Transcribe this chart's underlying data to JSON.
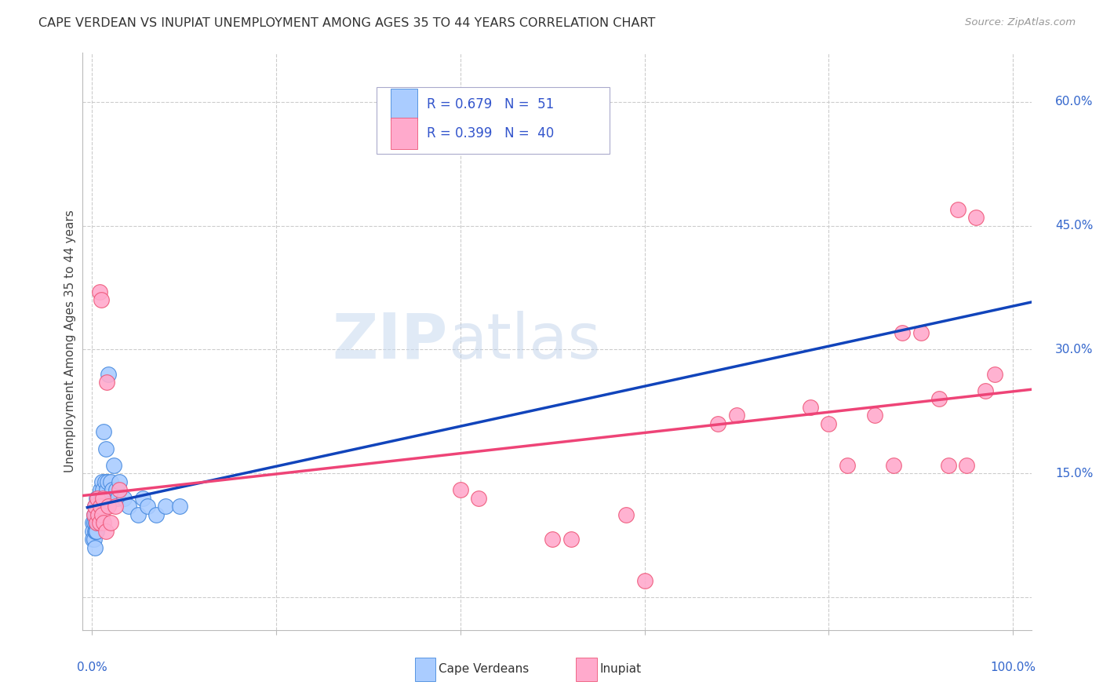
{
  "title": "CAPE VERDEAN VS INUPIAT UNEMPLOYMENT AMONG AGES 35 TO 44 YEARS CORRELATION CHART",
  "source": "Source: ZipAtlas.com",
  "ylabel": "Unemployment Among Ages 35 to 44 years",
  "ytick_vals": [
    0.0,
    0.15,
    0.3,
    0.45,
    0.6
  ],
  "ytick_labels": [
    "",
    "15.0%",
    "30.0%",
    "45.0%",
    "60.0%"
  ],
  "background_color": "#ffffff",
  "grid_color": "#cccccc",
  "cape_verdean_color": "#aaccff",
  "cape_verdean_edge": "#4488dd",
  "inupiat_color": "#ffaacc",
  "inupiat_edge": "#ee5577",
  "trendline1_color": "#1144bb",
  "trendline2_color": "#ee4477",
  "cv_x": [
    0.001,
    0.001,
    0.001,
    0.002,
    0.002,
    0.002,
    0.003,
    0.003,
    0.003,
    0.003,
    0.004,
    0.004,
    0.004,
    0.005,
    0.005,
    0.005,
    0.006,
    0.006,
    0.006,
    0.007,
    0.007,
    0.007,
    0.008,
    0.008,
    0.009,
    0.009,
    0.01,
    0.01,
    0.011,
    0.011,
    0.012,
    0.013,
    0.014,
    0.015,
    0.016,
    0.017,
    0.018,
    0.02,
    0.022,
    0.024,
    0.026,
    0.028,
    0.03,
    0.035,
    0.04,
    0.05,
    0.055,
    0.06,
    0.07,
    0.08,
    0.095
  ],
  "cv_y": [
    0.09,
    0.08,
    0.07,
    0.1,
    0.09,
    0.07,
    0.11,
    0.1,
    0.08,
    0.06,
    0.1,
    0.09,
    0.08,
    0.12,
    0.1,
    0.08,
    0.11,
    0.1,
    0.09,
    0.12,
    0.1,
    0.09,
    0.11,
    0.1,
    0.13,
    0.09,
    0.12,
    0.1,
    0.14,
    0.11,
    0.13,
    0.2,
    0.14,
    0.18,
    0.13,
    0.14,
    0.27,
    0.14,
    0.13,
    0.16,
    0.13,
    0.12,
    0.14,
    0.12,
    0.11,
    0.1,
    0.12,
    0.11,
    0.1,
    0.11,
    0.11
  ],
  "inp_x": [
    0.002,
    0.003,
    0.005,
    0.006,
    0.007,
    0.008,
    0.008,
    0.009,
    0.01,
    0.011,
    0.012,
    0.013,
    0.015,
    0.016,
    0.018,
    0.02,
    0.025,
    0.03,
    0.4,
    0.42,
    0.5,
    0.52,
    0.58,
    0.6,
    0.68,
    0.7,
    0.78,
    0.8,
    0.82,
    0.85,
    0.87,
    0.88,
    0.9,
    0.92,
    0.93,
    0.94,
    0.95,
    0.96,
    0.97,
    0.98
  ],
  "inp_y": [
    0.1,
    0.11,
    0.09,
    0.12,
    0.1,
    0.09,
    0.37,
    0.11,
    0.36,
    0.1,
    0.12,
    0.09,
    0.08,
    0.26,
    0.11,
    0.09,
    0.11,
    0.13,
    0.13,
    0.12,
    0.07,
    0.07,
    0.1,
    0.02,
    0.21,
    0.22,
    0.23,
    0.21,
    0.16,
    0.22,
    0.16,
    0.32,
    0.32,
    0.24,
    0.16,
    0.47,
    0.16,
    0.46,
    0.25,
    0.27
  ]
}
